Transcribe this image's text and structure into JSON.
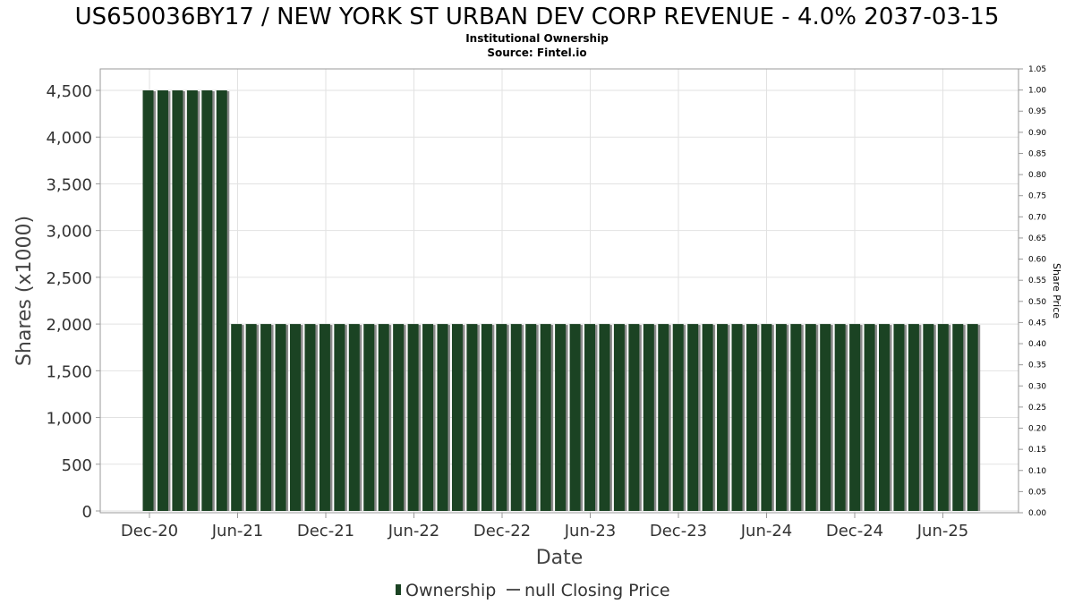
{
  "chart_data": {
    "type": "bar",
    "title": "US650036BY17 / NEW YORK ST URBAN DEV CORP REVENUE - 4.0% 2037-03-15",
    "subtitle": "Institutional Ownership",
    "source": "Source: Fintel.io",
    "xlabel": "Date",
    "ylabel": "Shares (x1000)",
    "y2label": "Share Price",
    "ylim": [
      0,
      4500
    ],
    "y2lim": [
      0,
      1.05
    ],
    "y_ticks": [
      "0",
      "500",
      "1,000",
      "1,500",
      "2,000",
      "2,500",
      "3,000",
      "3,500",
      "4,000",
      "4,500"
    ],
    "y2_ticks": [
      "0.00",
      "0.05",
      "0.10",
      "0.15",
      "0.20",
      "0.25",
      "0.30",
      "0.35",
      "0.40",
      "0.45",
      "0.50",
      "0.55",
      "0.60",
      "0.65",
      "0.70",
      "0.75",
      "0.80",
      "0.85",
      "0.90",
      "0.95",
      "1.00",
      "1.05"
    ],
    "x_ticks": [
      "Dec-20",
      "Jun-21",
      "Dec-21",
      "Jun-22",
      "Dec-22",
      "Jun-23",
      "Dec-23",
      "Jun-24",
      "Dec-24",
      "Jun-25"
    ],
    "grid": true,
    "legend_position": "bottom",
    "colors": {
      "bar": "#1b4323",
      "bar_shadow": "#8a8a8a",
      "grid": "#e2e2e2"
    },
    "series": [
      {
        "name": "Ownership",
        "values": [
          4500,
          4500,
          4500,
          4500,
          4500,
          4500,
          2000,
          2000,
          2000,
          2000,
          2000,
          2000,
          2000,
          2000,
          2000,
          2000,
          2000,
          2000,
          2000,
          2000,
          2000,
          2000,
          2000,
          2000,
          2000,
          2000,
          2000,
          2000,
          2000,
          2000,
          2000,
          2000,
          2000,
          2000,
          2000,
          2000,
          2000,
          2000,
          2000,
          2000,
          2000,
          2000,
          2000,
          2000,
          2000,
          2000,
          2000,
          2000,
          2000,
          2000,
          2000,
          2000,
          2000,
          2000,
          2000,
          2000,
          2000
        ]
      }
    ],
    "legend": [
      "Ownership",
      "null Closing Price"
    ]
  }
}
